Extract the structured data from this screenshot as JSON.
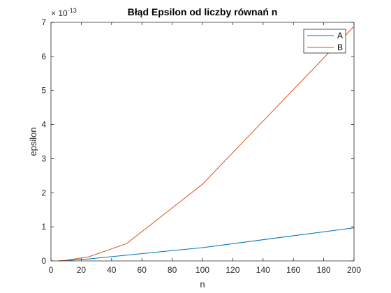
{
  "chart_data": {
    "type": "line",
    "title": "Błąd Epsilon od liczby równań n",
    "xlabel": "n",
    "ylabel": "epsilon",
    "exponent_prefix": "× 10",
    "exponent_power": "-13",
    "xlim": [
      0,
      200
    ],
    "ylim": [
      0,
      7
    ],
    "xticks": [
      0,
      20,
      40,
      60,
      80,
      100,
      120,
      140,
      160,
      180,
      200
    ],
    "yticks": [
      0,
      1,
      2,
      3,
      4,
      5,
      6,
      7
    ],
    "grid": false,
    "legend_position": "top-right",
    "series": [
      {
        "name": "A",
        "color": "#0072BD",
        "x": [
          5,
          10,
          25,
          50,
          100,
          200
        ],
        "y": [
          0.002,
          0.01,
          0.06,
          0.17,
          0.39,
          0.97
        ]
      },
      {
        "name": "B",
        "color": "#D95319",
        "x": [
          5,
          10,
          25,
          50,
          100,
          200
        ],
        "y": [
          0.003,
          0.02,
          0.12,
          0.51,
          2.25,
          6.88
        ]
      }
    ]
  }
}
